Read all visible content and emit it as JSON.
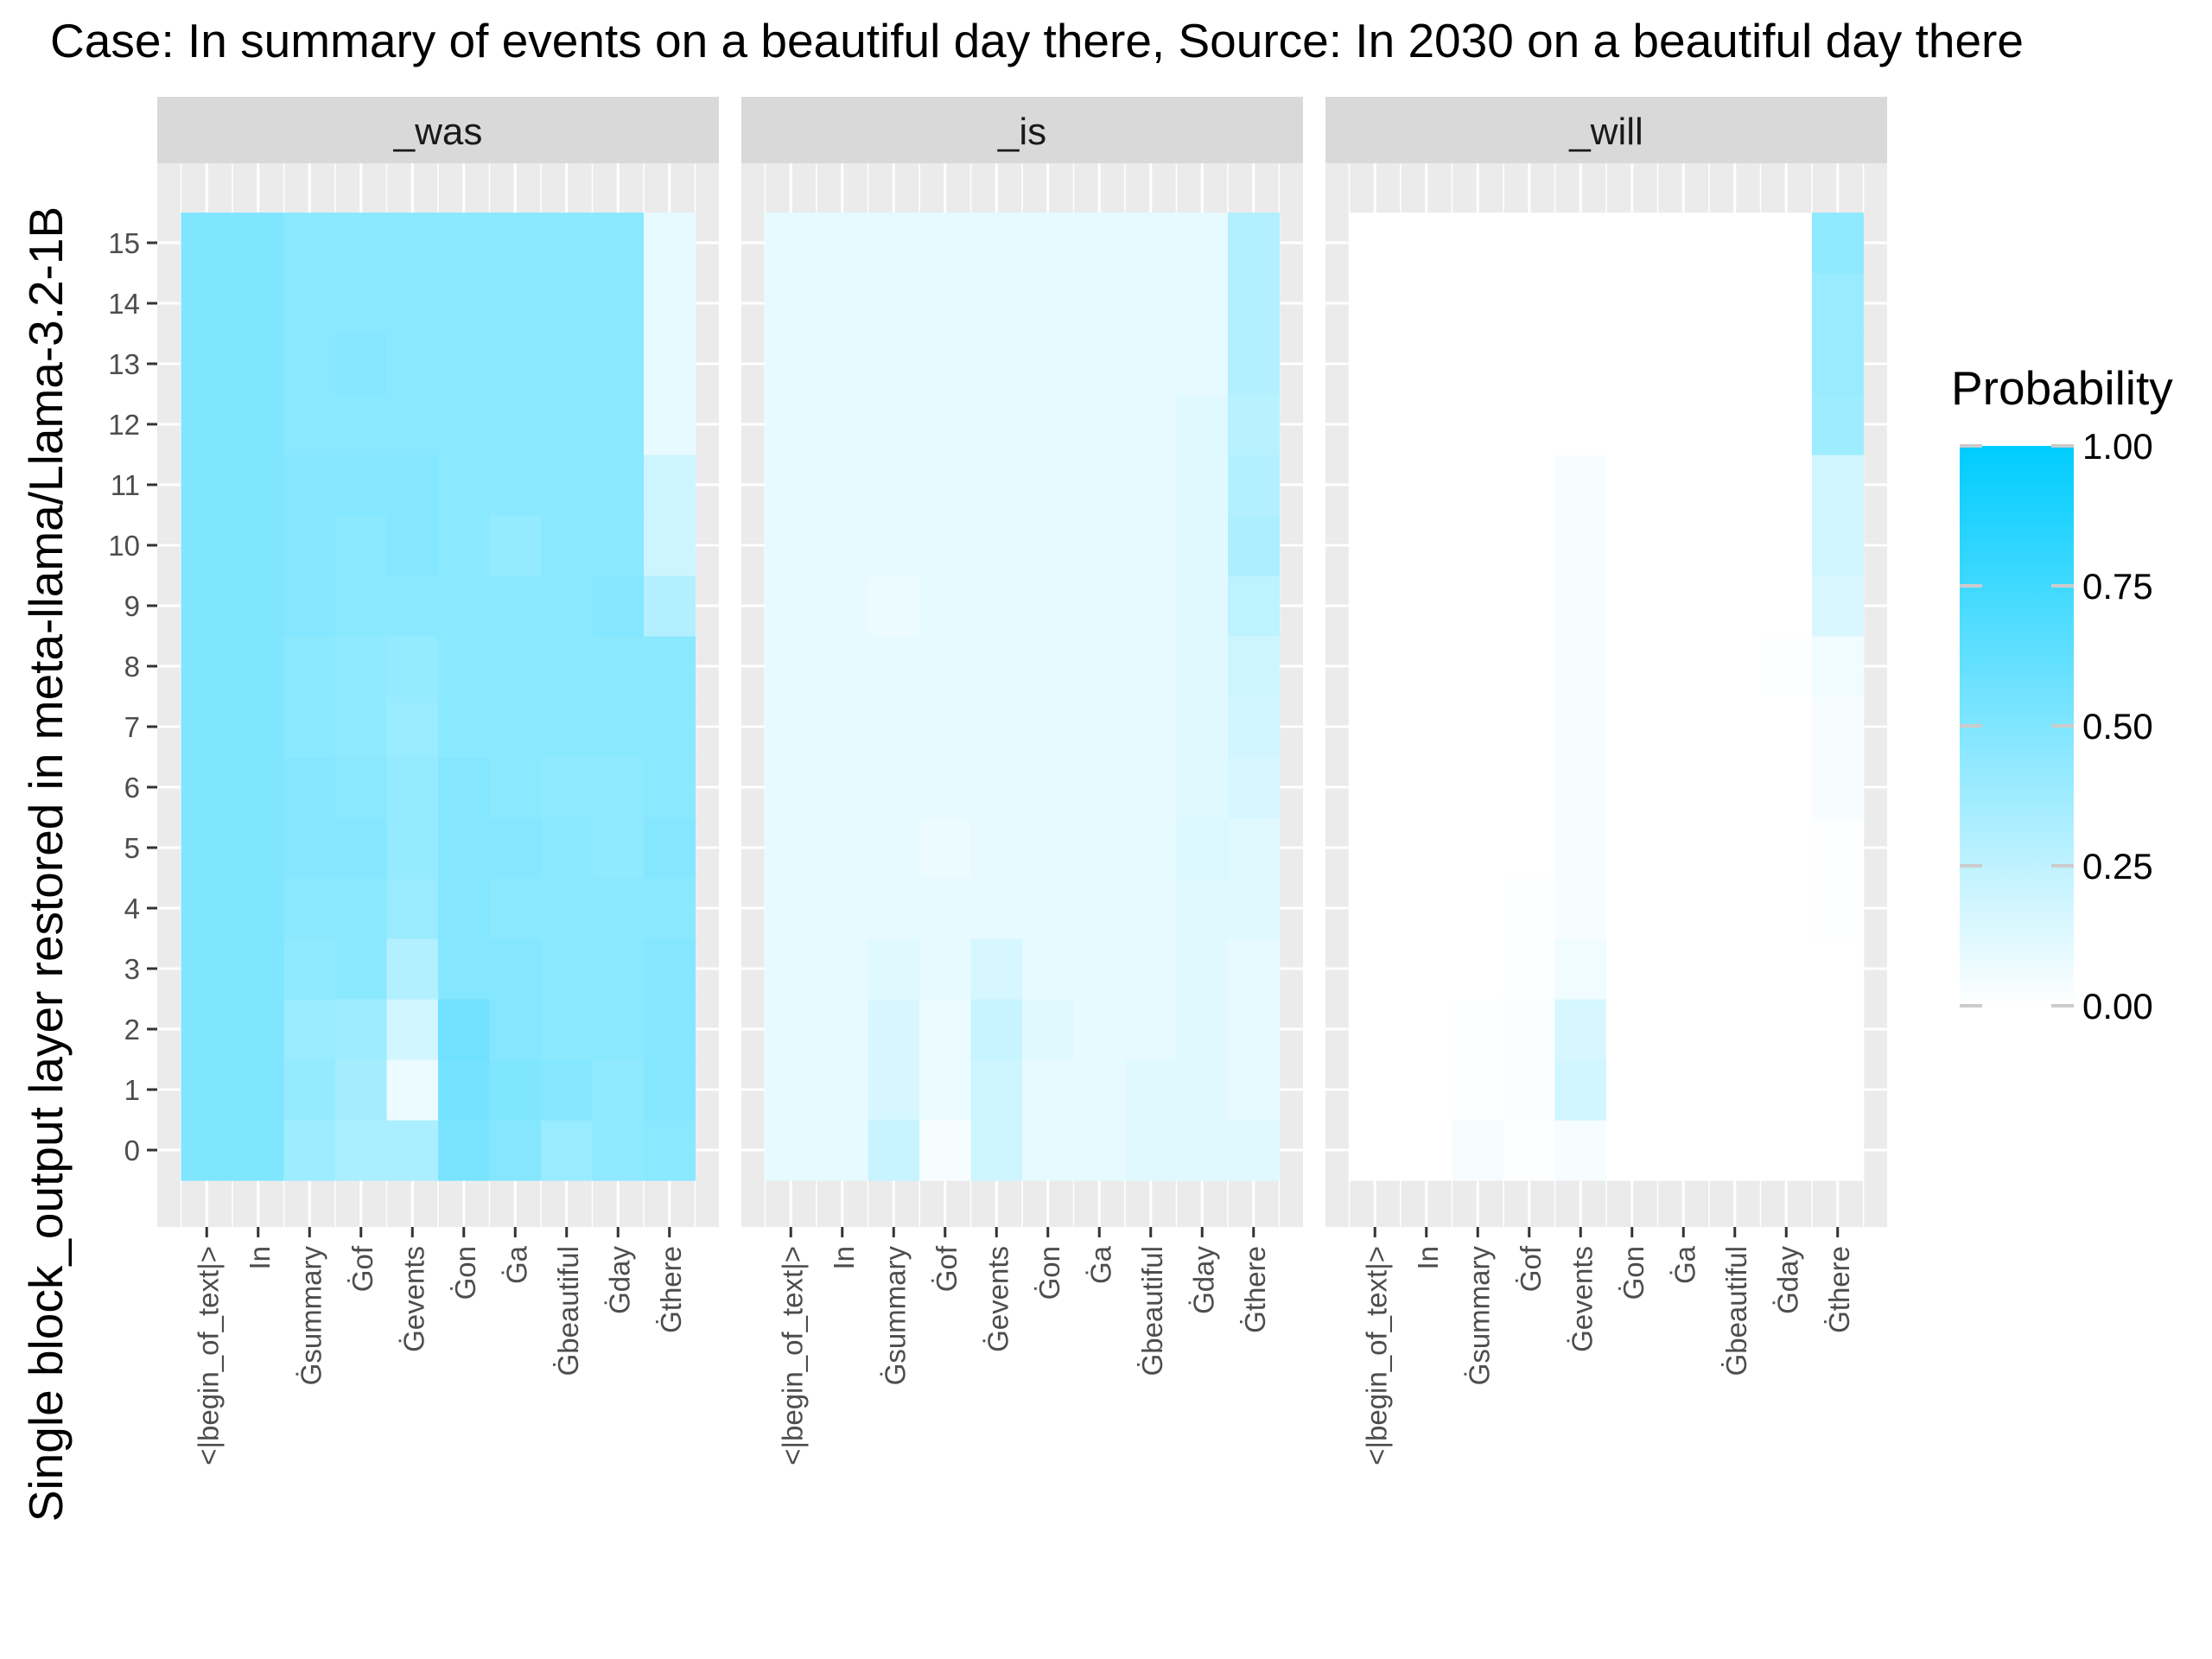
{
  "chart_data": {
    "type": "heatmap",
    "title": "Case: In summary of events on a beautiful day there, Source: In 2030 on a beautiful day there",
    "ylabel": "Single block_output layer restored in meta-llama/Llama-3.2-1B",
    "xlabel": "",
    "x_tokens": [
      "<|begin_of_text|>",
      "In",
      "Ġsummary",
      "Ġof",
      "Ġevents",
      "Ġon",
      "Ġa",
      "Ġbeautiful",
      "Ġday",
      "Ġthere"
    ],
    "layers": [
      0,
      1,
      2,
      3,
      4,
      5,
      6,
      7,
      8,
      9,
      10,
      11,
      12,
      13,
      14,
      15
    ],
    "legend": {
      "title": "Probability",
      "ticks": [
        1.0,
        0.75,
        0.5,
        0.25,
        0.0
      ],
      "tick_labels": [
        "1.00",
        "0.75",
        "0.50",
        "0.25",
        "0.00"
      ],
      "color_low": "#ffffff",
      "color_high": "#00ccff"
    },
    "facets": [
      {
        "name": "_was",
        "values": [
          [
            0.5,
            0.5,
            0.38,
            0.33,
            0.33,
            0.52,
            0.48,
            0.4,
            0.44,
            0.46
          ],
          [
            0.5,
            0.5,
            0.42,
            0.36,
            0.08,
            0.54,
            0.5,
            0.48,
            0.44,
            0.48
          ],
          [
            0.5,
            0.5,
            0.4,
            0.38,
            0.18,
            0.56,
            0.48,
            0.46,
            0.46,
            0.48
          ],
          [
            0.5,
            0.5,
            0.44,
            0.46,
            0.3,
            0.48,
            0.48,
            0.46,
            0.46,
            0.48
          ],
          [
            0.5,
            0.5,
            0.46,
            0.46,
            0.4,
            0.48,
            0.46,
            0.46,
            0.46,
            0.46
          ],
          [
            0.5,
            0.5,
            0.48,
            0.48,
            0.42,
            0.48,
            0.48,
            0.46,
            0.44,
            0.48
          ],
          [
            0.5,
            0.5,
            0.48,
            0.46,
            0.42,
            0.48,
            0.46,
            0.44,
            0.44,
            0.46
          ],
          [
            0.5,
            0.5,
            0.46,
            0.44,
            0.4,
            0.46,
            0.46,
            0.46,
            0.46,
            0.46
          ],
          [
            0.5,
            0.5,
            0.46,
            0.44,
            0.42,
            0.46,
            0.46,
            0.46,
            0.46,
            0.46
          ],
          [
            0.5,
            0.5,
            0.48,
            0.46,
            0.46,
            0.46,
            0.46,
            0.46,
            0.48,
            0.3
          ],
          [
            0.5,
            0.5,
            0.48,
            0.46,
            0.48,
            0.46,
            0.42,
            0.46,
            0.46,
            0.2
          ],
          [
            0.5,
            0.5,
            0.48,
            0.48,
            0.48,
            0.46,
            0.46,
            0.46,
            0.46,
            0.2
          ],
          [
            0.5,
            0.5,
            0.46,
            0.46,
            0.46,
            0.46,
            0.46,
            0.46,
            0.46,
            0.1
          ],
          [
            0.5,
            0.5,
            0.46,
            0.48,
            0.46,
            0.46,
            0.46,
            0.46,
            0.46,
            0.1
          ],
          [
            0.5,
            0.5,
            0.46,
            0.46,
            0.46,
            0.46,
            0.46,
            0.46,
            0.46,
            0.1
          ],
          [
            0.5,
            0.5,
            0.46,
            0.46,
            0.46,
            0.46,
            0.46,
            0.46,
            0.46,
            0.1
          ]
        ]
      },
      {
        "name": "_is",
        "values": [
          [
            0.1,
            0.1,
            0.22,
            0.03,
            0.2,
            0.1,
            0.1,
            0.12,
            0.12,
            0.12
          ],
          [
            0.1,
            0.1,
            0.16,
            0.08,
            0.2,
            0.1,
            0.1,
            0.12,
            0.12,
            0.1
          ],
          [
            0.1,
            0.1,
            0.16,
            0.08,
            0.22,
            0.12,
            0.1,
            0.1,
            0.12,
            0.1
          ],
          [
            0.1,
            0.1,
            0.12,
            0.1,
            0.16,
            0.1,
            0.1,
            0.1,
            0.12,
            0.1
          ],
          [
            0.1,
            0.1,
            0.1,
            0.1,
            0.1,
            0.1,
            0.1,
            0.1,
            0.12,
            0.12
          ],
          [
            0.1,
            0.1,
            0.1,
            0.08,
            0.1,
            0.1,
            0.1,
            0.1,
            0.14,
            0.12
          ],
          [
            0.1,
            0.1,
            0.1,
            0.1,
            0.1,
            0.1,
            0.1,
            0.1,
            0.12,
            0.16
          ],
          [
            0.1,
            0.1,
            0.1,
            0.1,
            0.1,
            0.1,
            0.1,
            0.1,
            0.12,
            0.18
          ],
          [
            0.1,
            0.1,
            0.1,
            0.1,
            0.1,
            0.1,
            0.1,
            0.1,
            0.12,
            0.2
          ],
          [
            0.1,
            0.1,
            0.08,
            0.1,
            0.1,
            0.1,
            0.1,
            0.1,
            0.12,
            0.26
          ],
          [
            0.1,
            0.1,
            0.1,
            0.1,
            0.1,
            0.1,
            0.1,
            0.1,
            0.12,
            0.32
          ],
          [
            0.1,
            0.1,
            0.1,
            0.1,
            0.1,
            0.1,
            0.1,
            0.1,
            0.12,
            0.3
          ],
          [
            0.1,
            0.1,
            0.1,
            0.1,
            0.1,
            0.1,
            0.1,
            0.1,
            0.12,
            0.28
          ],
          [
            0.1,
            0.1,
            0.1,
            0.1,
            0.1,
            0.1,
            0.1,
            0.1,
            0.1,
            0.3
          ],
          [
            0.1,
            0.1,
            0.1,
            0.1,
            0.1,
            0.1,
            0.1,
            0.1,
            0.1,
            0.3
          ],
          [
            0.1,
            0.1,
            0.1,
            0.1,
            0.1,
            0.1,
            0.1,
            0.1,
            0.1,
            0.3
          ]
        ]
      },
      {
        "name": "_will",
        "values": [
          [
            0.0,
            0.0,
            0.03,
            0.01,
            0.04,
            0.0,
            0.0,
            0.0,
            0.0,
            0.0
          ],
          [
            0.0,
            0.0,
            0.01,
            0.02,
            0.18,
            0.0,
            0.0,
            0.0,
            0.0,
            0.0
          ],
          [
            0.0,
            0.0,
            0.01,
            0.02,
            0.16,
            0.0,
            0.0,
            0.0,
            0.0,
            0.0
          ],
          [
            0.0,
            0.0,
            0.0,
            0.01,
            0.06,
            0.0,
            0.0,
            0.0,
            0.0,
            0.0
          ],
          [
            0.0,
            0.0,
            0.0,
            0.01,
            0.03,
            0.0,
            0.0,
            0.0,
            0.0,
            0.01
          ],
          [
            0.0,
            0.0,
            0.0,
            0.0,
            0.03,
            0.0,
            0.0,
            0.0,
            0.0,
            0.01
          ],
          [
            0.0,
            0.0,
            0.0,
            0.0,
            0.03,
            0.0,
            0.0,
            0.0,
            0.0,
            0.03
          ],
          [
            0.0,
            0.0,
            0.0,
            0.0,
            0.03,
            0.0,
            0.0,
            0.0,
            0.0,
            0.03
          ],
          [
            0.0,
            0.0,
            0.0,
            0.0,
            0.03,
            0.0,
            0.0,
            0.0,
            0.01,
            0.06
          ],
          [
            0.0,
            0.0,
            0.0,
            0.0,
            0.03,
            0.0,
            0.0,
            0.0,
            0.0,
            0.15
          ],
          [
            0.0,
            0.0,
            0.0,
            0.0,
            0.03,
            0.0,
            0.0,
            0.0,
            0.0,
            0.18
          ],
          [
            0.0,
            0.0,
            0.0,
            0.0,
            0.03,
            0.0,
            0.0,
            0.0,
            0.0,
            0.18
          ],
          [
            0.0,
            0.0,
            0.0,
            0.0,
            0.0,
            0.0,
            0.0,
            0.0,
            0.0,
            0.38
          ],
          [
            0.0,
            0.0,
            0.0,
            0.0,
            0.0,
            0.0,
            0.0,
            0.0,
            0.0,
            0.4
          ],
          [
            0.0,
            0.0,
            0.0,
            0.0,
            0.0,
            0.0,
            0.0,
            0.0,
            0.0,
            0.4
          ],
          [
            0.0,
            0.0,
            0.0,
            0.0,
            0.0,
            0.0,
            0.0,
            0.0,
            0.0,
            0.44
          ]
        ]
      }
    ]
  }
}
